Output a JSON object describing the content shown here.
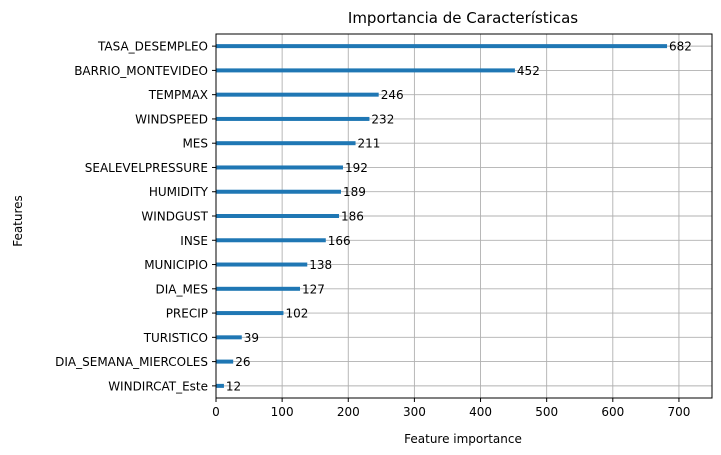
{
  "chart_data": {
    "type": "bar",
    "orientation": "horizontal",
    "title": "Importancia de Características",
    "xlabel": "Feature importance",
    "ylabel": "Features",
    "xlim": [
      0,
      750
    ],
    "xticks": [
      0,
      100,
      200,
      300,
      400,
      500,
      600,
      700
    ],
    "grid": true,
    "bar_color": "#1f77b4",
    "categories": [
      "TASA_DESEMPLEO",
      "BARRIO_MONTEVIDEO",
      "TEMPMAX",
      "WINDSPEED",
      "MES",
      "SEALEVELPRESSURE",
      "HUMIDITY",
      "WINDGUST",
      "INSE",
      "MUNICIPIO",
      "DIA_MES",
      "PRECIP",
      "TURISTICO",
      "DIA_SEMANA_MIERCOLES",
      "WINDIRCAT_Este"
    ],
    "values": [
      682,
      452,
      246,
      232,
      211,
      192,
      189,
      186,
      166,
      138,
      127,
      102,
      39,
      26,
      12
    ]
  }
}
